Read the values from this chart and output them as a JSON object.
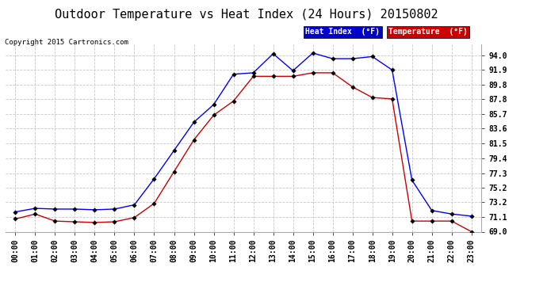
{
  "title": "Outdoor Temperature vs Heat Index (24 Hours) 20150802",
  "copyright": "Copyright 2015 Cartronics.com",
  "legend_heat": "Heat Index  (°F)",
  "legend_temp": "Temperature  (°F)",
  "hours": [
    "00:00",
    "01:00",
    "02:00",
    "03:00",
    "04:00",
    "05:00",
    "06:00",
    "07:00",
    "08:00",
    "09:00",
    "10:00",
    "11:00",
    "12:00",
    "13:00",
    "14:00",
    "15:00",
    "16:00",
    "17:00",
    "18:00",
    "19:00",
    "20:00",
    "21:00",
    "22:00",
    "23:00"
  ],
  "heat_index": [
    71.8,
    72.3,
    72.2,
    72.2,
    72.1,
    72.2,
    72.8,
    76.5,
    80.5,
    84.5,
    87.0,
    91.3,
    91.5,
    94.2,
    91.8,
    94.3,
    93.5,
    93.5,
    93.8,
    91.9,
    76.3,
    72.0,
    71.5,
    71.2
  ],
  "temperature": [
    70.8,
    71.5,
    70.5,
    70.4,
    70.3,
    70.4,
    71.0,
    73.0,
    77.5,
    82.0,
    85.5,
    87.5,
    91.0,
    91.0,
    91.0,
    91.5,
    91.5,
    89.5,
    88.0,
    87.8,
    70.5,
    70.5,
    70.5,
    69.0
  ],
  "ylim_min": 69.0,
  "ylim_max": 95.5,
  "yticks": [
    69.0,
    71.1,
    73.2,
    75.2,
    77.3,
    79.4,
    81.5,
    83.6,
    85.7,
    87.8,
    89.8,
    91.9,
    94.0
  ],
  "heat_color": "#0000ff",
  "temp_color": "#cc0000",
  "bg_color": "#ffffff",
  "grid_color": "#c8c8c8",
  "title_fontsize": 11,
  "tick_fontsize": 7,
  "legend_heat_bg": "#0000cc",
  "legend_temp_bg": "#cc0000"
}
